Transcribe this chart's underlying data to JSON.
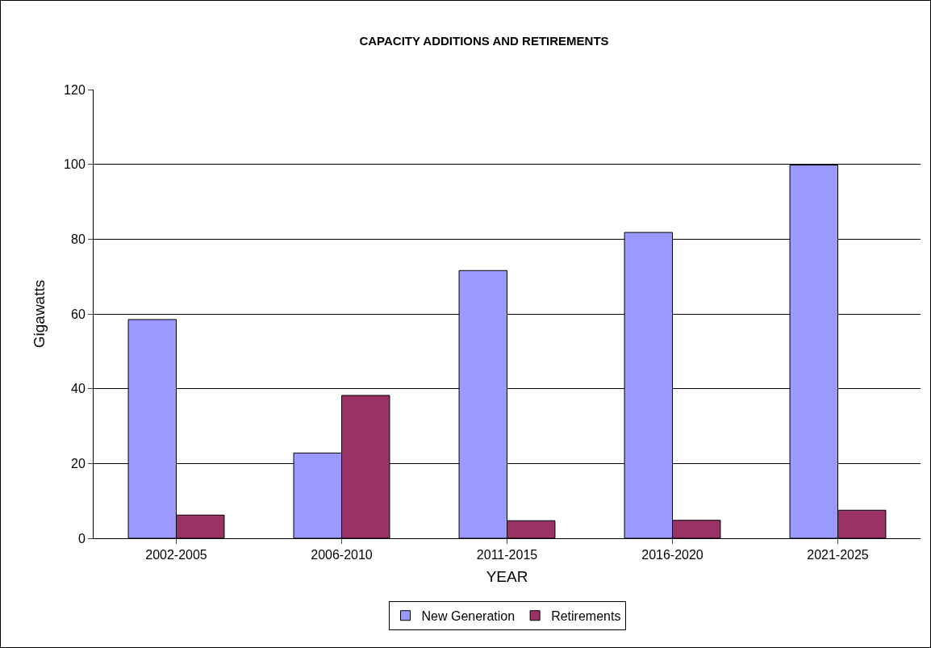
{
  "chart_data": {
    "type": "bar",
    "title": "CAPACITY ADDITIONS AND RETIREMENTS",
    "xlabel": "YEAR",
    "ylabel": "Gigawatts",
    "categories": [
      "2002-2005",
      "2006-2010",
      "2011-2015",
      "2016-2020",
      "2021-2025"
    ],
    "series": [
      {
        "name": "New Generation",
        "color": "#9999ff",
        "values": [
          58.5,
          22.8,
          71.6,
          81.8,
          99.8
        ]
      },
      {
        "name": "Retirements",
        "color": "#993366",
        "values": [
          6.2,
          38.2,
          4.7,
          4.8,
          7.5
        ]
      }
    ],
    "ylim": [
      0,
      120
    ],
    "yticks": [
      0,
      20,
      40,
      60,
      80,
      100,
      120
    ],
    "grid": "y",
    "legend": "bottom"
  }
}
